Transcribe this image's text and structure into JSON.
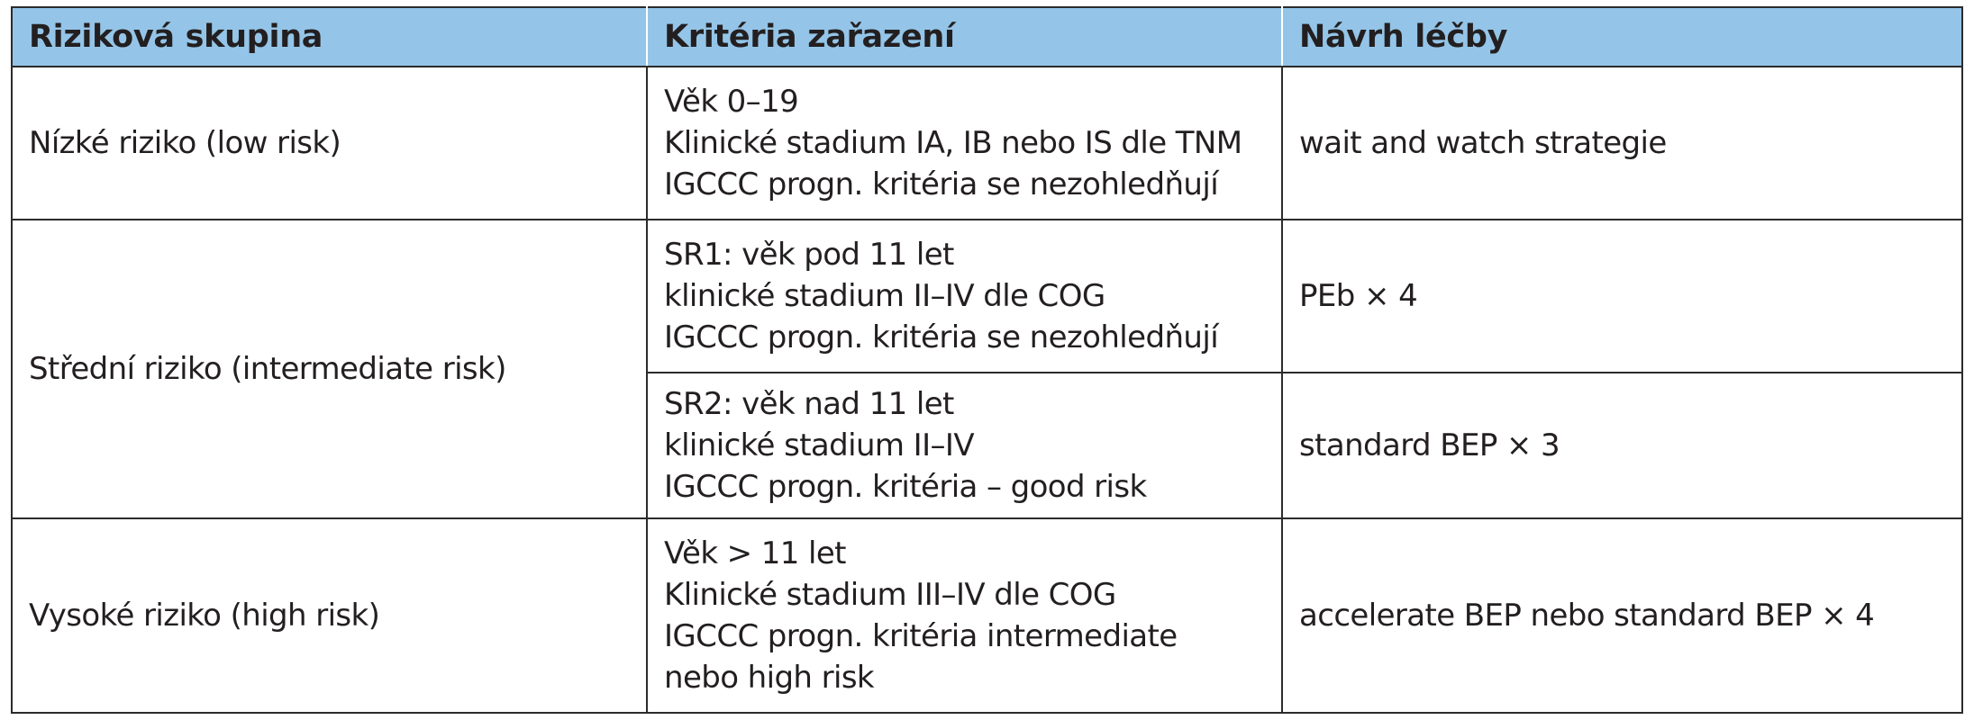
{
  "table": {
    "headers": {
      "group": "Riziková skupina",
      "criteria": "Kritéria zařazení",
      "treatment": "Návrh léčby"
    },
    "rows": [
      {
        "group": "Nízké riziko (low risk)",
        "criteria": [
          "Věk 0–19",
          "Klinické stadium IA, IB nebo IS dle TNM",
          "IGCCC progn. kritéria se nezohledňují"
        ],
        "treatment": "wait and watch strategie"
      },
      {
        "group": "Střední riziko (intermediate risk)",
        "subrows": [
          {
            "criteria": [
              "SR1: věk pod 11 let",
              "klinické stadium II–IV dle COG",
              "IGCCC progn. kritéria se nezohledňují"
            ],
            "treatment": "PEb × 4"
          },
          {
            "criteria": [
              "SR2: věk nad 11 let",
              "klinické stadium II–IV",
              "IGCCC progn. kritéria – good risk"
            ],
            "treatment": "standard BEP × 3"
          }
        ]
      },
      {
        "group": "Vysoké riziko (high risk)",
        "criteria": [
          "Věk > 11 let",
          "Klinické stadium III–IV dle COG",
          "IGCCC progn. kritéria intermediate",
          "nebo high risk"
        ],
        "treatment": "accelerate BEP nebo standard BEP × 4"
      }
    ]
  },
  "colors": {
    "header_background": "#94c5e8",
    "border": "#2b2b2b",
    "text": "#231f20"
  }
}
